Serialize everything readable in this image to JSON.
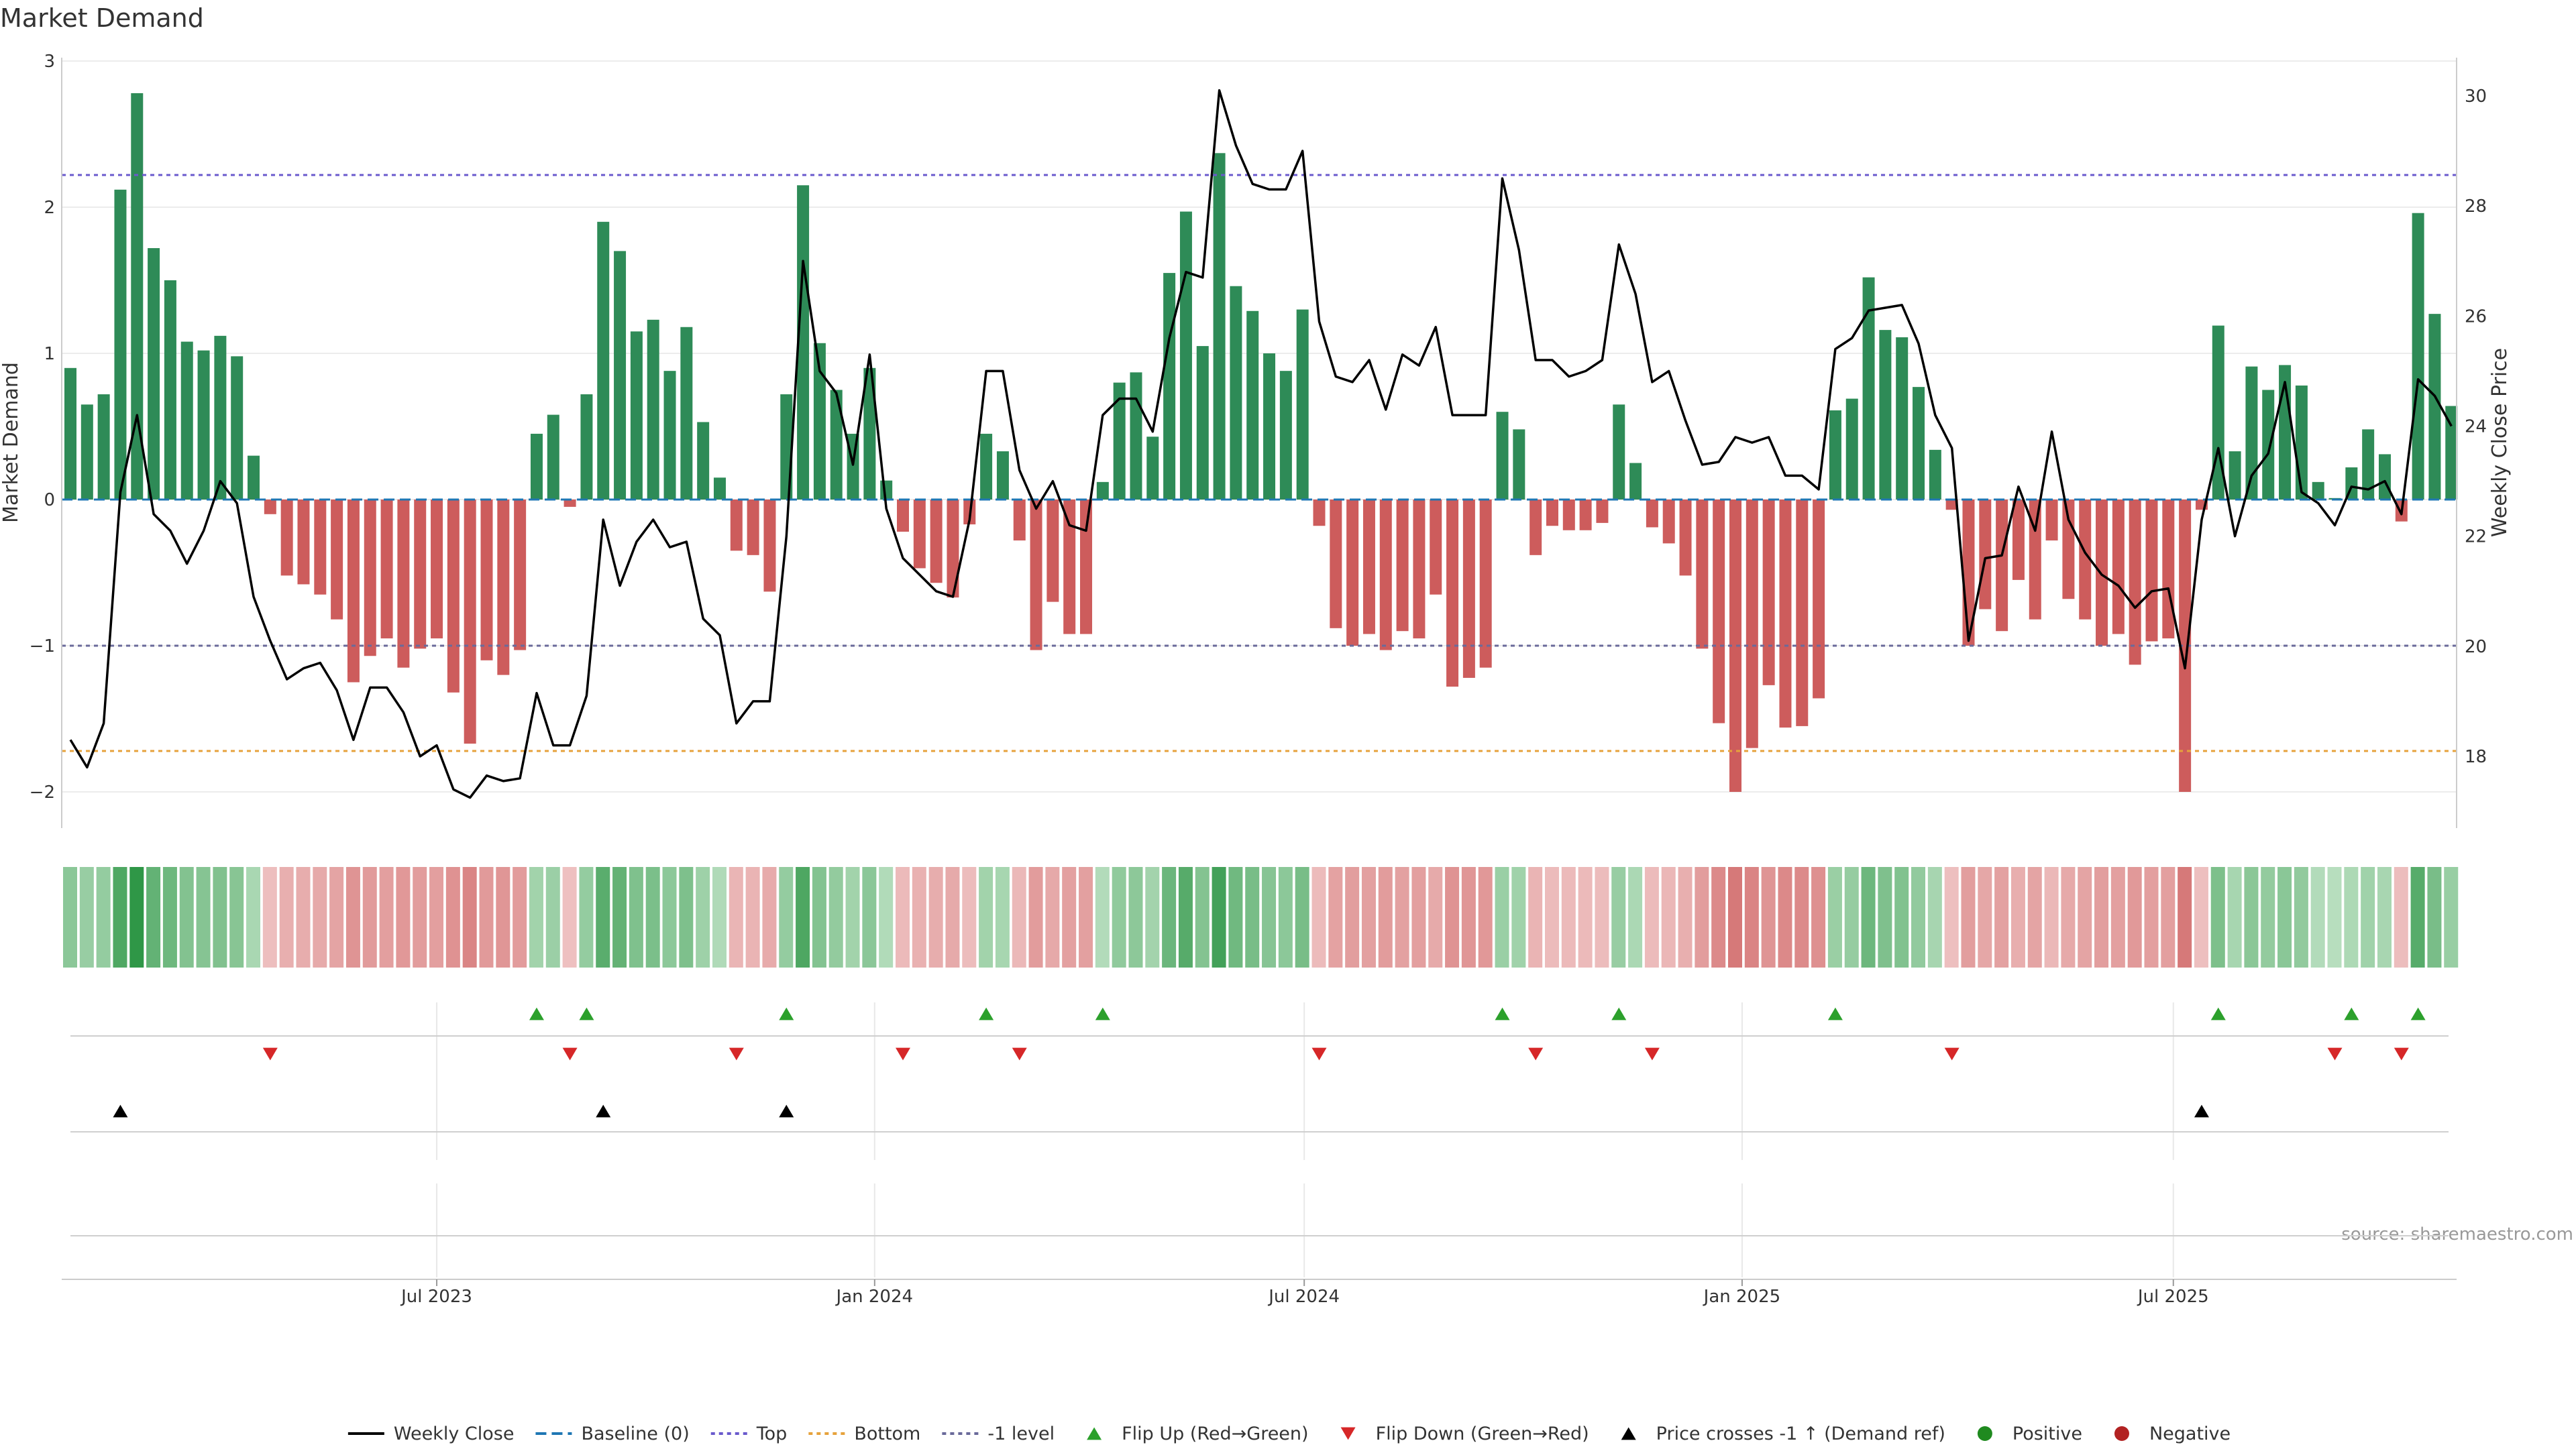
{
  "title": "Market Demand",
  "source_note": "source: sharemaestro.com",
  "colors": {
    "positive_bar": "#2e8b57",
    "negative_bar": "#cd5c5c",
    "price_line": "#000000",
    "flip_up": "#2ca02c",
    "flip_down": "#d62728",
    "cross": "#000000",
    "top_line": "#6a5acd",
    "bottom_line": "#e6a23c",
    "minus1_line": "#6a6a9a",
    "baseline": "#1f77b4",
    "positive_dot": "#1f8a1f",
    "negative_dot": "#b22222"
  },
  "legend": [
    {
      "key": "weekly_close",
      "label": "Weekly Close"
    },
    {
      "key": "baseline",
      "label": "Baseline (0)"
    },
    {
      "key": "top",
      "label": "Top"
    },
    {
      "key": "bottom",
      "label": "Bottom"
    },
    {
      "key": "minus1",
      "label": "-1 level"
    },
    {
      "key": "flip_up",
      "label": "Flip Up (Red→Green)"
    },
    {
      "key": "flip_down",
      "label": "Flip Down (Green→Red)"
    },
    {
      "key": "cross",
      "label": "Price crosses -1 ↑ (Demand ref)"
    },
    {
      "key": "positive",
      "label": "Positive"
    },
    {
      "key": "negative",
      "label": "Negative"
    }
  ],
  "chart_data": {
    "type": "bar",
    "title": "Market Demand",
    "ylabel": "Market Demand",
    "y2label": "Weekly Close Price",
    "ylim": [
      -2.25,
      3
    ],
    "y2lim": [
      17.0,
      30.6
    ],
    "yticks": [
      3,
      2,
      1,
      0,
      -1,
      -2
    ],
    "yticklabels": [
      "3",
      "2",
      "1",
      "0",
      "−1",
      "−2"
    ],
    "y2ticks": [
      30,
      28,
      26,
      24,
      22,
      20,
      18
    ],
    "x_start_week": 0,
    "x_end_week": 144,
    "xticks": [
      {
        "week": 22,
        "label": "Jul 2023"
      },
      {
        "week": 48.3,
        "label": "Jan 2024"
      },
      {
        "week": 74.1,
        "label": "Jul 2024"
      },
      {
        "week": 100.4,
        "label": "Jan 2025"
      },
      {
        "week": 126.3,
        "label": "Jul 2025"
      }
    ],
    "reference_lines": {
      "top": 2.22,
      "bottom": -1.72,
      "minus1": -1.0,
      "baseline": 0
    },
    "demand": [
      0.9,
      0.65,
      0.72,
      2.12,
      2.78,
      1.72,
      1.5,
      1.08,
      1.02,
      1.12,
      0.98,
      0.3,
      -0.1,
      -0.52,
      -0.58,
      -0.65,
      -0.82,
      -1.25,
      -1.07,
      -0.95,
      -1.15,
      -1.02,
      -0.95,
      -1.32,
      -1.67,
      -1.1,
      -1.2,
      -1.03,
      0.45,
      0.58,
      -0.05,
      0.72,
      1.9,
      1.7,
      1.15,
      1.23,
      0.88,
      1.18,
      0.53,
      0.15,
      -0.35,
      -0.38,
      -0.63,
      0.72,
      2.15,
      1.07,
      0.75,
      0.45,
      0.9,
      0.13,
      -0.22,
      -0.47,
      -0.57,
      -0.67,
      -0.17,
      0.45,
      0.33,
      -0.28,
      -1.03,
      -0.7,
      -0.92,
      -0.92,
      0.12,
      0.8,
      0.87,
      0.43,
      1.55,
      1.97,
      1.05,
      2.37,
      1.46,
      1.29,
      1.0,
      0.88,
      1.3,
      -0.18,
      -0.88,
      -1.0,
      -0.92,
      -1.03,
      -0.9,
      -0.95,
      -0.65,
      -1.28,
      -1.22,
      -1.15,
      0.6,
      0.48,
      -0.38,
      -0.18,
      -0.21,
      -0.21,
      -0.16,
      0.65,
      0.25,
      -0.19,
      -0.3,
      -0.52,
      -1.02,
      -1.53,
      -2.0,
      -1.7,
      -1.27,
      -1.56,
      -1.55,
      -1.36,
      0.61,
      0.69,
      1.52,
      1.16,
      1.11,
      0.77,
      0.34,
      -0.07,
      -1.0,
      -0.75,
      -0.9,
      -0.55,
      -0.82,
      -0.28,
      -0.68,
      -0.82,
      -1.0,
      -0.92,
      -1.13,
      -0.97,
      -0.95,
      -2.0,
      -0.07,
      1.19,
      0.33,
      0.91,
      0.75,
      0.92,
      0.78,
      0.12,
      0.01,
      0.22,
      0.48,
      0.31,
      -0.15,
      1.96,
      1.27,
      0.64
    ],
    "weekly_close": [
      18.3,
      17.8,
      18.6,
      22.8,
      24.2,
      22.4,
      22.1,
      21.5,
      22.1,
      23.0,
      22.6,
      20.9,
      20.1,
      19.4,
      19.6,
      19.7,
      19.2,
      18.3,
      19.25,
      19.25,
      18.8,
      18.0,
      18.2,
      17.4,
      17.25,
      17.65,
      17.55,
      17.6,
      19.15,
      18.2,
      18.2,
      19.1,
      22.3,
      21.1,
      21.9,
      22.3,
      21.8,
      21.9,
      20.5,
      20.2,
      18.6,
      19.0,
      19.0,
      22.0,
      27.0,
      25.0,
      24.6,
      23.3,
      25.3,
      22.5,
      21.6,
      21.3,
      21.0,
      20.9,
      22.3,
      25.0,
      25.0,
      23.2,
      22.5,
      23.0,
      22.2,
      22.1,
      24.2,
      24.5,
      24.5,
      23.9,
      25.6,
      26.8,
      26.7,
      30.1,
      29.1,
      28.4,
      28.3,
      28.3,
      29.0,
      25.9,
      24.9,
      24.8,
      25.2,
      24.3,
      25.3,
      25.1,
      25.8,
      24.2,
      24.2,
      24.2,
      28.5,
      27.2,
      25.2,
      25.2,
      24.9,
      25.0,
      25.2,
      27.3,
      26.4,
      24.8,
      25.0,
      24.1,
      23.3,
      23.35,
      23.8,
      23.7,
      23.8,
      23.1,
      23.1,
      22.85,
      25.4,
      25.6,
      26.1,
      26.15,
      26.2,
      25.5,
      24.2,
      23.6,
      20.1,
      21.6,
      21.65,
      22.9,
      22.1,
      23.9,
      22.3,
      21.7,
      21.3,
      21.1,
      20.7,
      21.0,
      21.05,
      19.6,
      22.3,
      23.6,
      22.0,
      23.1,
      23.5,
      24.8,
      22.8,
      22.6,
      22.2,
      22.9,
      22.85,
      23.0,
      22.4,
      24.85,
      24.55,
      24.0
    ],
    "flip_up_weeks": [
      28,
      31,
      43,
      55,
      62,
      86,
      93,
      106,
      129,
      137,
      141
    ],
    "flip_down_weeks": [
      12,
      30,
      40,
      50,
      57,
      75,
      88,
      95,
      113,
      136,
      140
    ],
    "price_cross_weeks": [
      3,
      32,
      43,
      128
    ]
  }
}
